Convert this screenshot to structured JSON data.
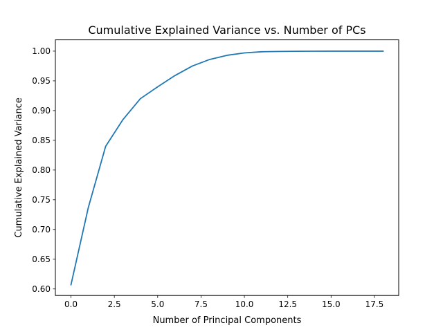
{
  "chart_data": {
    "type": "line",
    "title": "Cumulative Explained Variance vs. Number of PCs",
    "xlabel": "Number of Principal Components",
    "ylabel": "Cumulative Explained Variance",
    "xlim": [
      -0.9,
      18.9
    ],
    "ylim": [
      0.589,
      1.019
    ],
    "x_ticks": [
      0.0,
      2.5,
      5.0,
      7.5,
      10.0,
      12.5,
      15.0,
      17.5
    ],
    "x_tick_labels": [
      "0.0",
      "2.5",
      "5.0",
      "7.5",
      "10.0",
      "12.5",
      "15.0",
      "17.5"
    ],
    "y_ticks": [
      0.6,
      0.65,
      0.7,
      0.75,
      0.8,
      0.85,
      0.9,
      0.95,
      1.0
    ],
    "y_tick_labels": [
      "0.60",
      "0.65",
      "0.70",
      "0.75",
      "0.80",
      "0.85",
      "0.90",
      "0.95",
      "1.00"
    ],
    "grid": false,
    "series": [
      {
        "color": "#1f77b4",
        "x": [
          0,
          1,
          2,
          3,
          4,
          5,
          6,
          7,
          8,
          9,
          10,
          11,
          12,
          13,
          14,
          15,
          16,
          17,
          18
        ],
        "y": [
          0.607,
          0.737,
          0.84,
          0.885,
          0.92,
          0.94,
          0.959,
          0.975,
          0.986,
          0.993,
          0.997,
          0.999,
          0.9995,
          0.9998,
          0.9999,
          1.0,
          1.0,
          1.0,
          1.0
        ]
      }
    ]
  }
}
